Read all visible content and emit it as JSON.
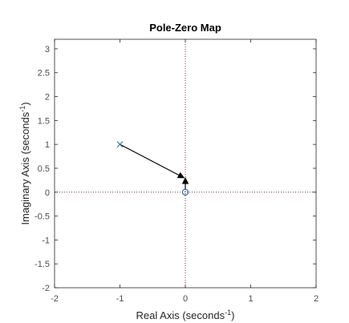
{
  "chart_data": {
    "type": "scatter",
    "title": "Pole-Zero Map",
    "xlabel": {
      "base": "Real Axis (seconds",
      "sup": "-1",
      "tail": ")"
    },
    "ylabel": {
      "base": "Imaginary Axis (seconds",
      "sup": "-1",
      "tail": ")"
    },
    "xlim": [
      -2,
      2
    ],
    "ylim": [
      -2,
      3.2
    ],
    "xticks": [
      -2,
      -1,
      0,
      1,
      2
    ],
    "yticks": [
      -2,
      -1.5,
      -1,
      -0.5,
      0,
      0.5,
      1,
      1.5,
      2,
      2.5,
      3
    ],
    "grid": false,
    "reference_lines": {
      "x": 0,
      "y": 0,
      "style": "dotted"
    },
    "poles": [
      {
        "x": -1,
        "y": 1
      }
    ],
    "zeros": [
      {
        "x": 0,
        "y": 0
      }
    ],
    "arrows": [
      {
        "from": [
          -1,
          1
        ],
        "to": [
          -0.02,
          0.3
        ]
      },
      {
        "from": [
          0,
          0.05
        ],
        "to": [
          0,
          0.3
        ]
      }
    ],
    "colors": {
      "marker": "#2a6fa3",
      "reference_line": "#7a2b55",
      "arrow": "#000000",
      "axes": "#262626",
      "tick_text": "#4d4d4d"
    }
  }
}
